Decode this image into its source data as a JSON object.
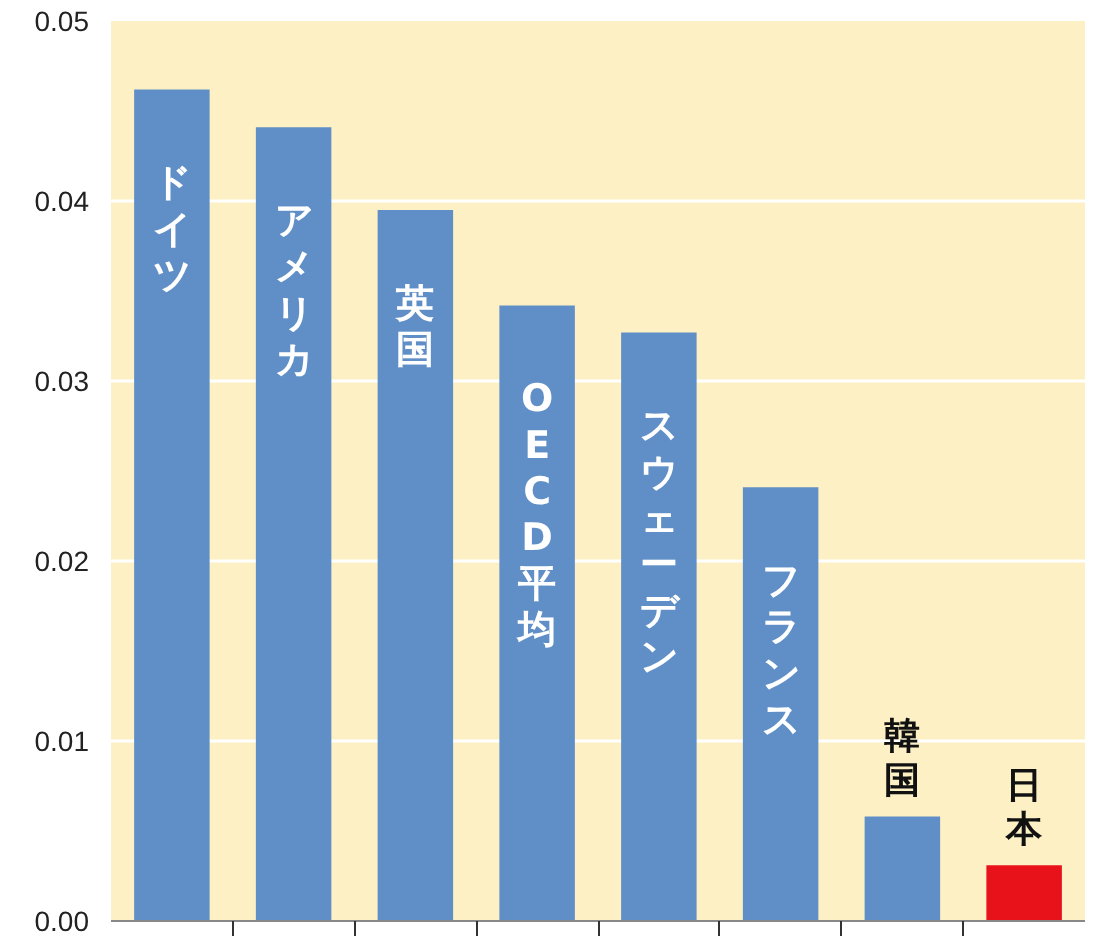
{
  "chart_data": {
    "type": "bar",
    "categories": [
      "ドイツ",
      "アメリカ",
      "英国",
      "OECD平均",
      "スウェーデン",
      "フランス",
      "韓国",
      "日本"
    ],
    "values": [
      0.0462,
      0.0441,
      0.0395,
      0.0342,
      0.0327,
      0.0241,
      0.0058,
      0.0031
    ],
    "colors": [
      "#5f8fc6",
      "#5f8fc6",
      "#5f8fc6",
      "#5f8fc6",
      "#5f8fc6",
      "#5f8fc6",
      "#5f8fc6",
      "#e8121b"
    ],
    "ylim": [
      0,
      0.05
    ],
    "yticks": [
      {
        "value": 0,
        "label": "0.00"
      },
      {
        "value": 0.01,
        "label": "0.01"
      },
      {
        "value": 0.02,
        "label": "0.02"
      },
      {
        "value": 0.03,
        "label": "0.03"
      },
      {
        "value": 0.04,
        "label": "0.04"
      },
      {
        "value": 0.05,
        "label": "0.05"
      }
    ],
    "grid": "y"
  }
}
